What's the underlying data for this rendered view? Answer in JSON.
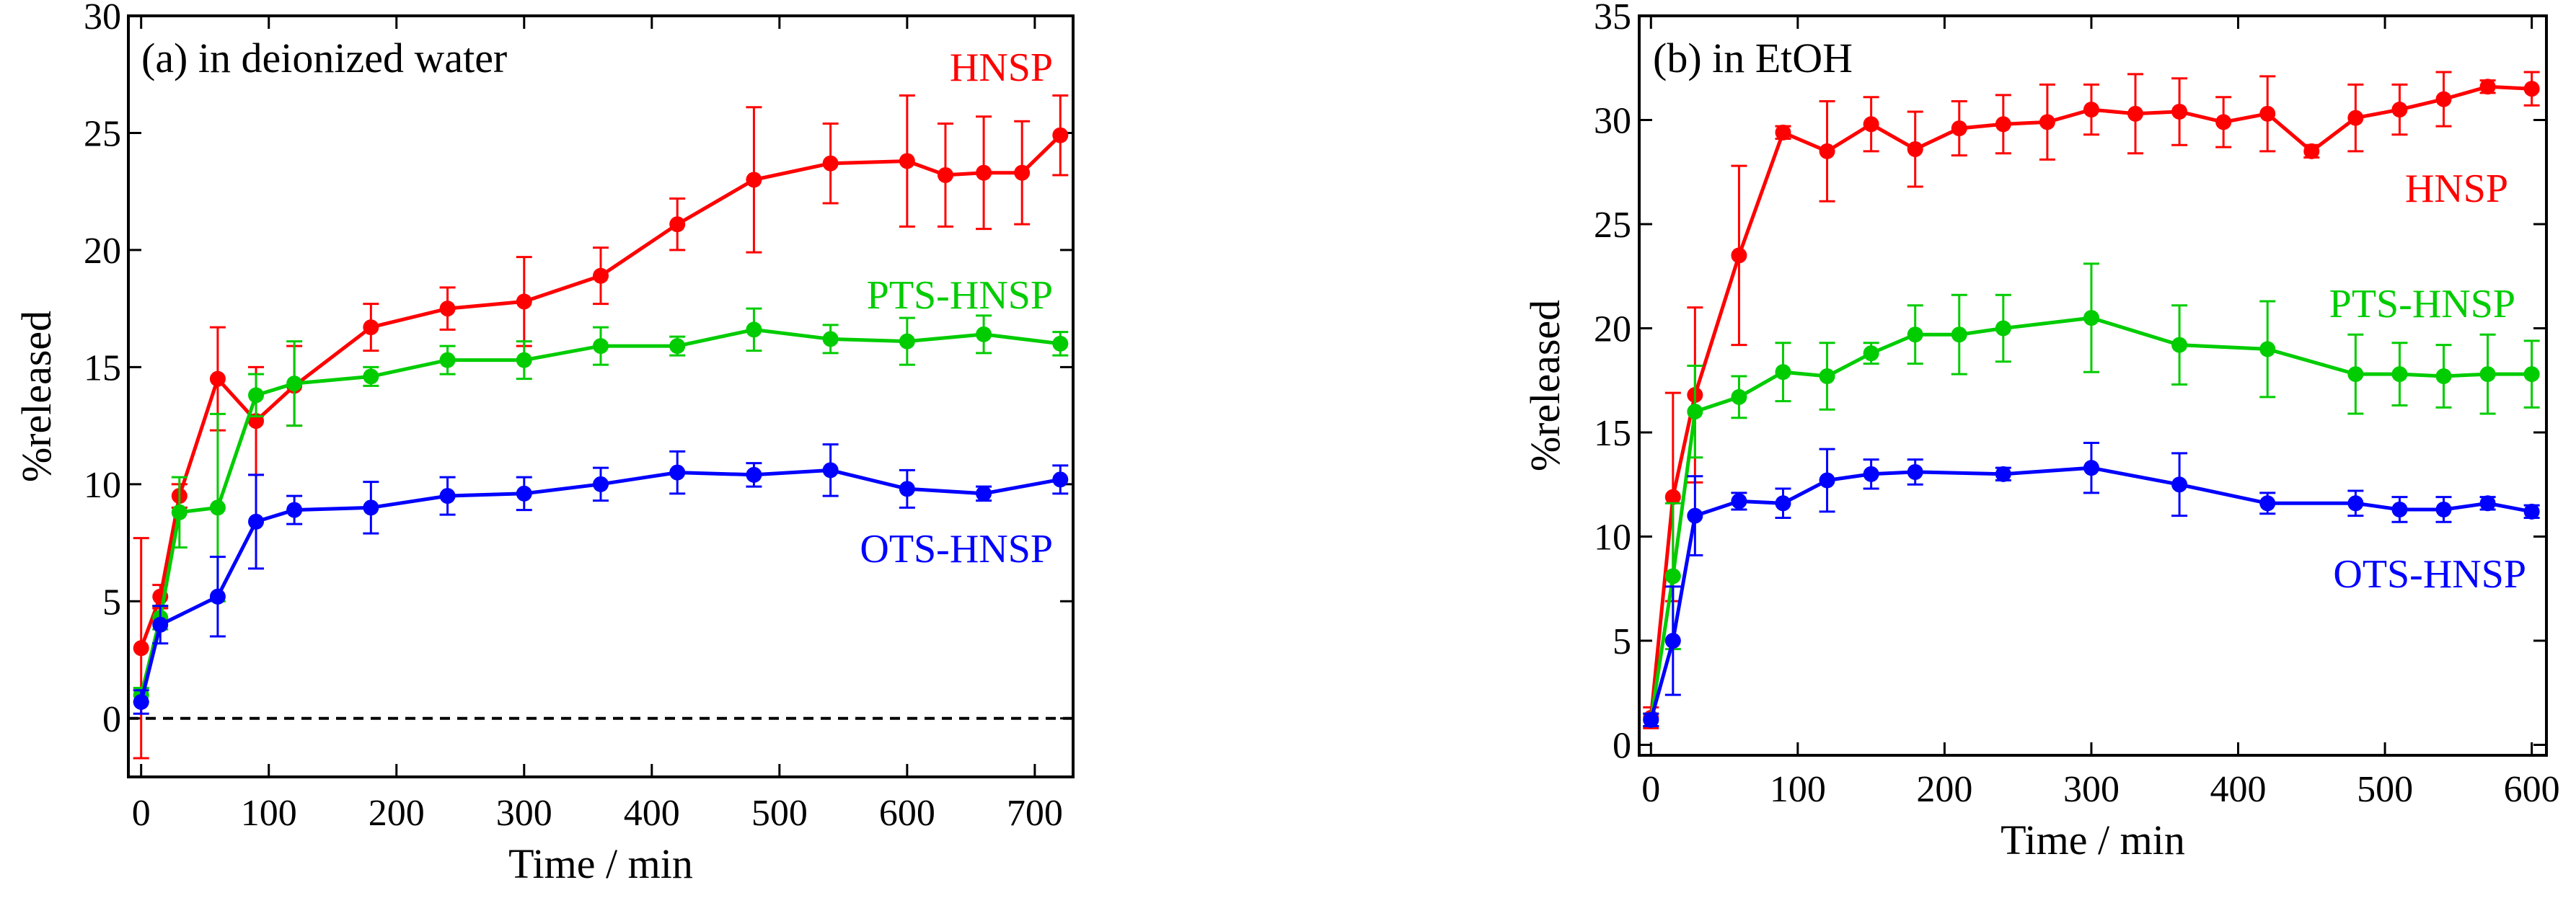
{
  "chart_data": [
    {
      "type": "line",
      "title": "(a) in deionized water",
      "xlabel": "Time  / min",
      "ylabel": "%released",
      "xlim": [
        -10,
        730
      ],
      "ylim": [
        -2.5,
        30
      ],
      "xticks": [
        0,
        100,
        200,
        300,
        400,
        500,
        600,
        700
      ],
      "yticks": [
        0,
        5,
        10,
        15,
        20,
        25,
        30
      ],
      "reference_line": {
        "y": 0,
        "style": "dashed",
        "color": "#000000"
      },
      "grid": false,
      "series": [
        {
          "name": "HNSP",
          "color": "#ff0000",
          "x": [
            0,
            15,
            30,
            60,
            90,
            120,
            180,
            240,
            300,
            360,
            420,
            480,
            540,
            600,
            630,
            660,
            690,
            720
          ],
          "y": [
            3.0,
            5.2,
            9.5,
            14.5,
            12.7,
            14.2,
            16.7,
            17.5,
            17.8,
            18.9,
            21.1,
            23.0,
            23.7,
            23.8,
            23.2,
            23.3,
            23.3,
            24.9
          ],
          "err": [
            4.7,
            0.5,
            0.5,
            2.2,
            2.3,
            1.7,
            1.0,
            0.9,
            1.9,
            1.2,
            1.1,
            3.1,
            1.7,
            2.8,
            2.2,
            2.4,
            2.2,
            1.7
          ]
        },
        {
          "name": "PTS-HNSP",
          "color": "#00cc00",
          "x": [
            0,
            15,
            30,
            60,
            90,
            120,
            180,
            240,
            300,
            360,
            420,
            480,
            540,
            600,
            660,
            720
          ],
          "y": [
            1.0,
            4.3,
            8.8,
            9.0,
            13.8,
            14.3,
            14.6,
            15.3,
            15.3,
            15.9,
            15.9,
            16.6,
            16.2,
            16.1,
            16.4,
            16.0
          ],
          "err": [
            0.3,
            0.5,
            1.5,
            4.0,
            0.9,
            1.8,
            0.4,
            0.6,
            0.8,
            0.8,
            0.4,
            0.9,
            0.6,
            1.0,
            0.8,
            0.5
          ]
        },
        {
          "name": "OTS-HNSP",
          "color": "#0000ff",
          "x": [
            0,
            15,
            60,
            90,
            120,
            180,
            240,
            300,
            360,
            420,
            480,
            540,
            600,
            660,
            720
          ],
          "y": [
            0.7,
            4.0,
            5.2,
            8.4,
            8.9,
            9.0,
            9.5,
            9.6,
            10.0,
            10.5,
            10.4,
            10.6,
            9.8,
            9.6,
            10.2
          ],
          "err": [
            0.5,
            0.8,
            1.7,
            2.0,
            0.6,
            1.1,
            0.8,
            0.7,
            0.7,
            0.9,
            0.5,
            1.1,
            0.8,
            0.3,
            0.6
          ]
        }
      ]
    },
    {
      "type": "line",
      "title": "(b) in EtOH",
      "xlabel": "Time  / min",
      "ylabel": "%released",
      "xlim": [
        -8,
        610
      ],
      "ylim": [
        -0.5,
        35
      ],
      "xticks": [
        0,
        100,
        200,
        300,
        400,
        500,
        600
      ],
      "yticks": [
        0,
        5,
        10,
        15,
        20,
        25,
        30,
        35
      ],
      "grid": false,
      "series": [
        {
          "name": "HNSP",
          "color": "#ff0000",
          "x": [
            0,
            15,
            30,
            60,
            90,
            120,
            150,
            180,
            210,
            240,
            270,
            300,
            330,
            360,
            390,
            420,
            450,
            480,
            510,
            540,
            570,
            600
          ],
          "y": [
            1.3,
            11.9,
            16.8,
            23.5,
            29.4,
            28.5,
            29.8,
            28.6,
            29.6,
            29.8,
            29.9,
            30.5,
            30.3,
            30.4,
            29.9,
            30.3,
            28.5,
            30.1,
            30.5,
            31.0,
            31.6,
            31.5
          ],
          "err": [
            0.5,
            5.0,
            4.2,
            4.3,
            0.3,
            2.4,
            1.3,
            1.8,
            1.3,
            1.4,
            1.8,
            1.2,
            1.9,
            1.6,
            1.2,
            1.8,
            0.3,
            1.6,
            1.2,
            1.3,
            0.3,
            0.8
          ]
        },
        {
          "name": "PTS-HNSP",
          "color": "#00cc00",
          "x": [
            0,
            15,
            30,
            60,
            90,
            120,
            150,
            180,
            210,
            240,
            300,
            360,
            420,
            480,
            510,
            540,
            570,
            600
          ],
          "y": [
            1.2,
            8.1,
            16.0,
            16.7,
            17.9,
            17.7,
            18.8,
            19.7,
            19.7,
            20.0,
            20.5,
            19.2,
            19.0,
            17.8,
            17.8,
            17.7,
            17.8,
            17.8
          ],
          "err": [
            0.3,
            3.5,
            2.2,
            1.0,
            1.4,
            1.6,
            0.5,
            1.4,
            1.9,
            1.6,
            2.6,
            1.9,
            2.3,
            1.9,
            1.5,
            1.5,
            1.9,
            1.6
          ]
        },
        {
          "name": "OTS-HNSP",
          "color": "#0000ff",
          "x": [
            0,
            15,
            30,
            60,
            90,
            120,
            150,
            180,
            240,
            300,
            360,
            420,
            480,
            510,
            540,
            570,
            600
          ],
          "y": [
            1.2,
            5.0,
            11.0,
            11.7,
            11.6,
            12.7,
            13.0,
            13.1,
            13.0,
            13.3,
            12.5,
            11.6,
            11.6,
            11.3,
            11.3,
            11.6,
            11.2
          ],
          "err": [
            0.3,
            2.6,
            1.9,
            0.4,
            0.7,
            1.5,
            0.7,
            0.6,
            0.3,
            1.2,
            1.5,
            0.5,
            0.6,
            0.6,
            0.6,
            0.3,
            0.3
          ]
        }
      ]
    }
  ]
}
